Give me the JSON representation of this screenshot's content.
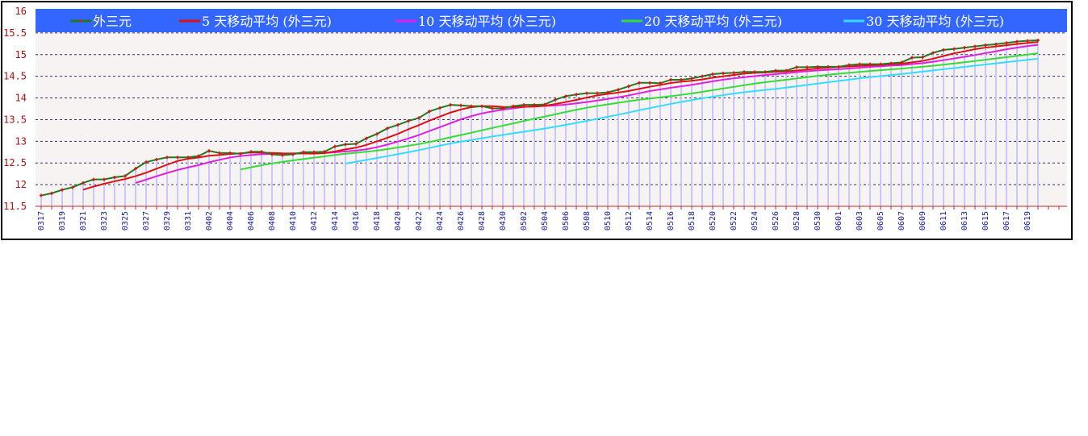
{
  "chart_data": {
    "type": "line",
    "title": "",
    "xlabel": "",
    "ylabel": "",
    "ylim": [
      11.5,
      16
    ],
    "yticks": [
      "11.5",
      "12",
      "12.5",
      "13",
      "13.5",
      "14",
      "14.5",
      "15",
      "15.5",
      "16"
    ],
    "grid": true,
    "legend_position": "top",
    "x": [
      "0317",
      "0318",
      "0319",
      "0320",
      "0321",
      "0322",
      "0323",
      "0324",
      "0325",
      "0326",
      "0327",
      "0328",
      "0329",
      "0330",
      "0331",
      "0401",
      "0402",
      "0403",
      "0404",
      "0405",
      "0406",
      "0407",
      "0408",
      "0409",
      "0410",
      "0411",
      "0412",
      "0413",
      "0414",
      "0415",
      "0416",
      "0417",
      "0418",
      "0419",
      "0420",
      "0421",
      "0422",
      "0423",
      "0424",
      "0425",
      "0426",
      "0427",
      "0428",
      "0429",
      "0430",
      "0501",
      "0502",
      "0503",
      "0504",
      "0505",
      "0506",
      "0507",
      "0508",
      "0509",
      "0510",
      "0511",
      "0512",
      "0513",
      "0514",
      "0515",
      "0516",
      "0517",
      "0518",
      "0519",
      "0520",
      "0521",
      "0522",
      "0523",
      "0524",
      "0525",
      "0526",
      "0527",
      "0528",
      "0529",
      "0530",
      "0531",
      "0601",
      "0602",
      "0603",
      "0604",
      "0605",
      "0606",
      "0607",
      "0608",
      "0609",
      "0610",
      "0611",
      "0612",
      "0613",
      "0614",
      "0615",
      "0616",
      "0617",
      "0618",
      "0619",
      "0620"
    ],
    "series": [
      {
        "name": "外三元",
        "color": "#1f7a1f",
        "marker_color": "#e01010",
        "values": [
          11.75,
          11.8,
          11.88,
          11.94,
          12.04,
          12.12,
          12.12,
          12.17,
          12.2,
          12.37,
          12.52,
          12.58,
          12.63,
          12.63,
          12.63,
          12.66,
          12.78,
          12.73,
          12.73,
          12.71,
          12.76,
          12.76,
          12.7,
          12.68,
          12.7,
          12.75,
          12.75,
          12.76,
          12.88,
          12.93,
          12.94,
          13.07,
          13.17,
          13.3,
          13.38,
          13.47,
          13.54,
          13.69,
          13.77,
          13.84,
          13.83,
          13.81,
          13.81,
          13.76,
          13.76,
          13.81,
          13.84,
          13.84,
          13.85,
          13.96,
          14.04,
          14.08,
          14.11,
          14.11,
          14.13,
          14.19,
          14.27,
          14.35,
          14.35,
          14.34,
          14.42,
          14.42,
          14.45,
          14.5,
          14.55,
          14.57,
          14.58,
          14.6,
          14.6,
          14.6,
          14.63,
          14.63,
          14.71,
          14.71,
          14.72,
          14.72,
          14.72,
          14.76,
          14.78,
          14.78,
          14.78,
          14.8,
          14.82,
          14.93,
          14.94,
          15.04,
          15.11,
          15.13,
          15.16,
          15.19,
          15.22,
          15.24,
          15.27,
          15.3,
          15.32,
          15.33
        ]
      },
      {
        "name": "5 天移动平均 (外三元)",
        "color": "#dd1111",
        "moving_average_of": 0,
        "window": 5
      },
      {
        "name": "10 天移动平均 (外三元)",
        "color": "#e020e0",
        "moving_average_of": 0,
        "window": 10
      },
      {
        "name": "20 天移动平均 (外三元)",
        "color": "#33dd33",
        "moving_average_of": 0,
        "window": 20
      },
      {
        "name": "30 天移动平均 (外三元)",
        "color": "#33ddff",
        "moving_average_of": 0,
        "window": 30
      }
    ],
    "legend_bg": "#3366ff",
    "axis_color": "#cc2222",
    "tick_label_color": "#aa1111",
    "x_label_color": "#1a1aa0",
    "drop_line_color": "#c8c8ff"
  }
}
